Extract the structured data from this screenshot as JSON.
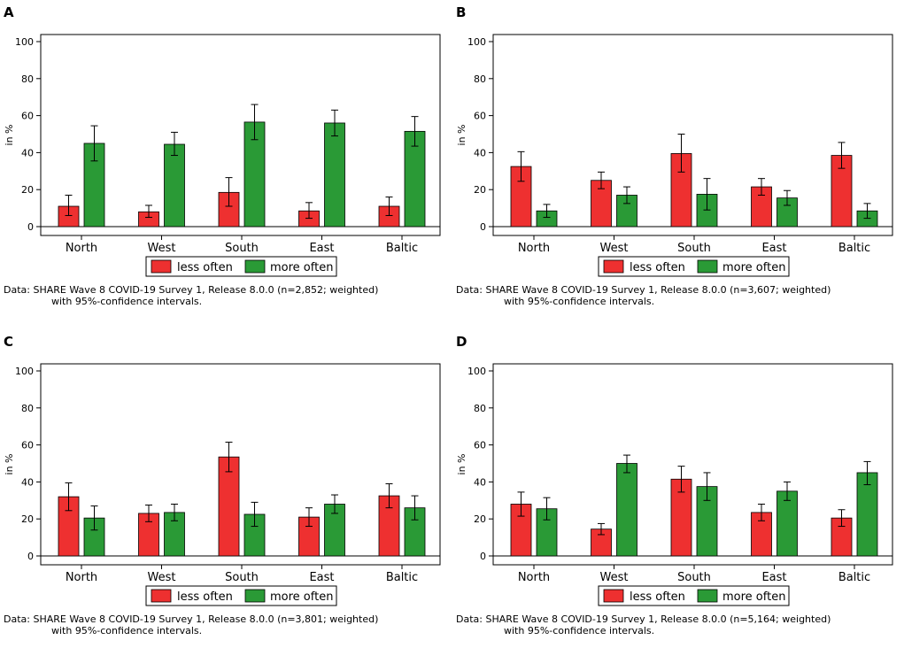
{
  "footnote_line2": "with 95%-confidence intervals.",
  "colors": {
    "less": "#ee3030",
    "more": "#2a9a36",
    "axis": "#000000"
  },
  "chart_data": [
    {
      "panel": "A",
      "type": "bar",
      "categories": [
        "North",
        "West",
        "South",
        "East",
        "Baltic"
      ],
      "ylabel": "in %",
      "ylim": [
        0,
        100
      ],
      "yticks": [
        0,
        20,
        40,
        60,
        80,
        100
      ],
      "legend": [
        "less often",
        "more often"
      ],
      "legend_position": "bottom",
      "series": [
        {
          "name": "less often",
          "values": [
            11,
            8,
            18.5,
            8.5,
            11
          ],
          "ci_low": [
            6,
            5,
            11,
            4.5,
            6
          ],
          "ci_high": [
            17,
            11.5,
            26.5,
            13,
            16
          ]
        },
        {
          "name": "more often",
          "values": [
            45,
            44.5,
            56.5,
            56,
            51.5
          ],
          "ci_low": [
            35.5,
            38.5,
            47,
            49,
            43.5
          ],
          "ci_high": [
            54.5,
            51,
            66,
            63,
            59.5
          ]
        }
      ],
      "footnote": "Data: SHARE Wave 8 COVID-19 Survey 1, Release 8.0.0 (n=2,852; weighted)"
    },
    {
      "panel": "B",
      "type": "bar",
      "categories": [
        "North",
        "West",
        "South",
        "East",
        "Baltic"
      ],
      "ylabel": "in %",
      "ylim": [
        0,
        100
      ],
      "yticks": [
        0,
        20,
        40,
        60,
        80,
        100
      ],
      "legend": [
        "less often",
        "more often"
      ],
      "legend_position": "bottom",
      "series": [
        {
          "name": "less often",
          "values": [
            32.5,
            25,
            39.5,
            21.5,
            38.5
          ],
          "ci_low": [
            24.5,
            20.5,
            29.5,
            17,
            31.5
          ],
          "ci_high": [
            40.5,
            29.5,
            50,
            26,
            45.5
          ]
        },
        {
          "name": "more often",
          "values": [
            8.5,
            17,
            17.5,
            15.5,
            8.5
          ],
          "ci_low": [
            5,
            12.5,
            9,
            11.5,
            4.5
          ],
          "ci_high": [
            12,
            21.5,
            26,
            19.5,
            12.5
          ]
        }
      ],
      "footnote": "Data: SHARE Wave 8 COVID-19 Survey 1, Release 8.0.0 (n=3,607; weighted)"
    },
    {
      "panel": "C",
      "type": "bar",
      "categories": [
        "North",
        "West",
        "South",
        "East",
        "Baltic"
      ],
      "ylabel": "in %",
      "ylim": [
        0,
        100
      ],
      "yticks": [
        0,
        20,
        40,
        60,
        80,
        100
      ],
      "legend": [
        "less often",
        "more often"
      ],
      "legend_position": "bottom",
      "series": [
        {
          "name": "less often",
          "values": [
            32,
            23,
            53.5,
            21,
            32.5
          ],
          "ci_low": [
            24.5,
            18.5,
            45.5,
            16,
            26
          ],
          "ci_high": [
            39.5,
            27.5,
            61.5,
            26,
            39
          ]
        },
        {
          "name": "more often",
          "values": [
            20.5,
            23.5,
            22.5,
            28,
            26
          ],
          "ci_low": [
            14,
            19,
            16,
            23,
            19.5
          ],
          "ci_high": [
            27,
            28,
            29,
            33,
            32.5
          ]
        }
      ],
      "footnote": "Data: SHARE Wave 8 COVID-19 Survey 1, Release 8.0.0 (n=3,801; weighted)"
    },
    {
      "panel": "D",
      "type": "bar",
      "categories": [
        "North",
        "West",
        "South",
        "East",
        "Baltic"
      ],
      "ylabel": "in %",
      "ylim": [
        0,
        100
      ],
      "yticks": [
        0,
        20,
        40,
        60,
        80,
        100
      ],
      "legend": [
        "less often",
        "more often"
      ],
      "legend_position": "bottom",
      "series": [
        {
          "name": "less often",
          "values": [
            28,
            14.5,
            41.5,
            23.5,
            20.5
          ],
          "ci_low": [
            21.5,
            11.5,
            34.5,
            19,
            16
          ],
          "ci_high": [
            34.5,
            17.5,
            48.5,
            28,
            25
          ]
        },
        {
          "name": "more often",
          "values": [
            25.5,
            50,
            37.5,
            35,
            45
          ],
          "ci_low": [
            19.5,
            45,
            30,
            30,
            38.5
          ],
          "ci_high": [
            31.5,
            54.5,
            45,
            40,
            51
          ]
        }
      ],
      "footnote": "Data: SHARE Wave 8 COVID-19 Survey 1, Release 8.0.0 (n=5,164; weighted)"
    }
  ]
}
